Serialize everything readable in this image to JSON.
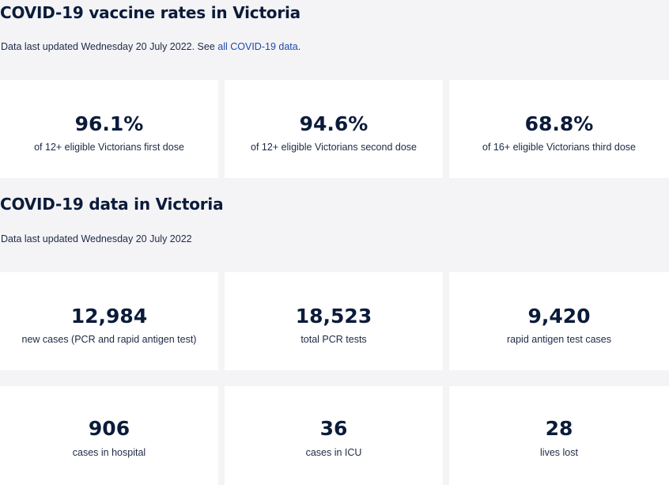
{
  "vaccine": {
    "title": "COVID-19 vaccine rates in Victoria",
    "updated_prefix": "Data last updated Wednesday 20 July 2022. See ",
    "updated_link": "all COVID-19 data",
    "updated_suffix": ".",
    "stats": [
      {
        "value": "96.1%",
        "label": "of 12+ eligible Victorians first dose"
      },
      {
        "value": "94.6%",
        "label": "of 12+ eligible Victorians second dose"
      },
      {
        "value": "68.8%",
        "label": "of 16+ eligible Victorians third dose"
      }
    ]
  },
  "data": {
    "title": "COVID-19 data in Victoria",
    "updated": "Data last updated Wednesday 20 July 2022",
    "stats": [
      {
        "value": "12,984",
        "label": "new cases (PCR and rapid antigen test)"
      },
      {
        "value": "18,523",
        "label": "total PCR tests"
      },
      {
        "value": "9,420",
        "label": "rapid antigen test cases"
      },
      {
        "value": "906",
        "label": "cases in hospital"
      },
      {
        "value": "36",
        "label": "cases in ICU"
      },
      {
        "value": "28",
        "label": "lives lost"
      }
    ]
  },
  "colors": {
    "background": "#f4f4f6",
    "card": "#ffffff",
    "heading": "#0b1b3a",
    "link": "#1f4aa8"
  }
}
